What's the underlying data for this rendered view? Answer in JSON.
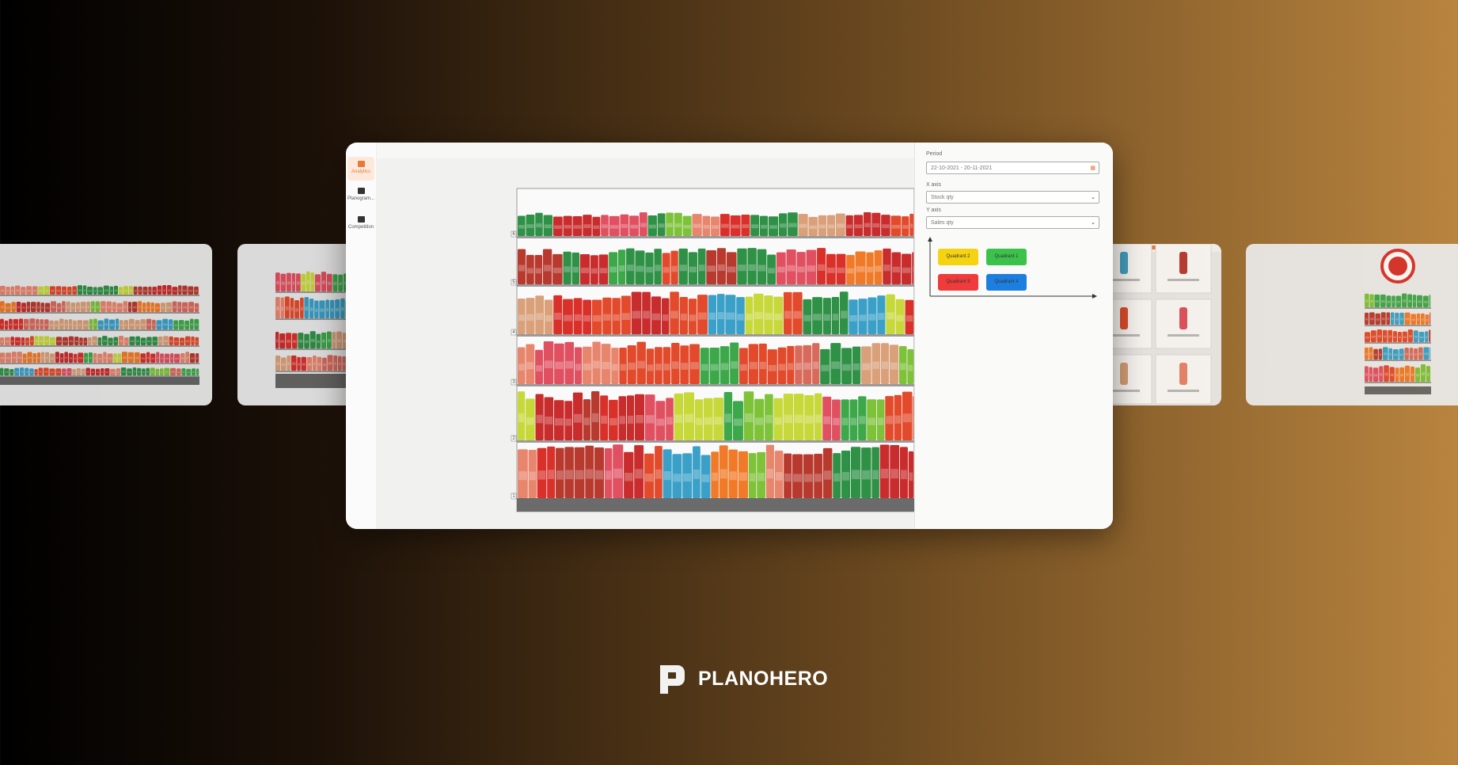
{
  "sidebar": {
    "items": [
      {
        "label": "Analytics"
      },
      {
        "label": "Planogram..."
      },
      {
        "label": "Competition"
      }
    ]
  },
  "panel": {
    "period_label": "Period",
    "period_value": "22-10-2021 - 20-11-2021",
    "x_axis_label": "X axis",
    "x_axis_value": "Stock qty",
    "y_axis_label": "Y axis",
    "y_axis_value": "Sales qty",
    "quadrants": [
      "Quadrant 2",
      "Quadrant 1",
      "Quadrant 3",
      "Quadrant 4"
    ]
  },
  "planogram": {
    "shelf_numbers": [
      "6",
      "5",
      "4",
      "3",
      "2",
      "1"
    ]
  },
  "brand": {
    "name": "PLANOHERO"
  }
}
